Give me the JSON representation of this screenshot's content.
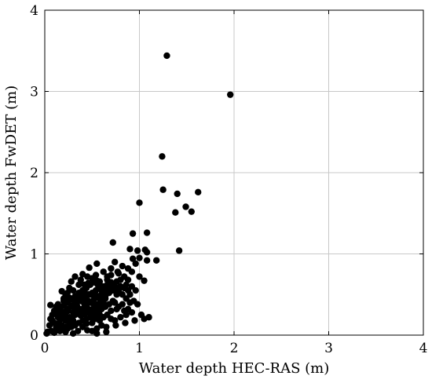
{
  "chart_data": {
    "type": "scatter",
    "title": "",
    "xlabel": "Water depth HEC-RAS (m)",
    "ylabel": "Water depth FwDET (m)",
    "xlim": [
      0,
      4
    ],
    "ylim": [
      0,
      4
    ],
    "xticks": [
      "0",
      "1",
      "2",
      "3",
      "4"
    ],
    "yticks": [
      "0",
      "1",
      "2",
      "3",
      "4"
    ],
    "grid": true,
    "marker_color": "#000000",
    "points": [
      [
        1.29,
        3.44
      ],
      [
        1.96,
        2.96
      ],
      [
        1.24,
        2.2
      ],
      [
        1.25,
        1.79
      ],
      [
        1.4,
        1.74
      ],
      [
        1.62,
        1.76
      ],
      [
        1.49,
        1.58
      ],
      [
        1.38,
        1.51
      ],
      [
        1.55,
        1.52
      ],
      [
        1.0,
        1.63
      ],
      [
        0.93,
        1.25
      ],
      [
        1.08,
        1.26
      ],
      [
        0.72,
        1.14
      ],
      [
        0.9,
        1.06
      ],
      [
        0.98,
        1.04
      ],
      [
        1.06,
        1.05
      ],
      [
        1.08,
        1.02
      ],
      [
        1.42,
        1.04
      ],
      [
        0.93,
        0.94
      ],
      [
        1.0,
        0.95
      ],
      [
        1.18,
        0.92
      ],
      [
        1.08,
        0.92
      ],
      [
        0.96,
        0.88
      ],
      [
        0.88,
        0.82
      ],
      [
        0.82,
        0.85
      ],
      [
        0.74,
        0.9
      ],
      [
        0.55,
        0.88
      ],
      [
        0.47,
        0.83
      ],
      [
        0.77,
        0.78
      ],
      [
        0.92,
        0.78
      ],
      [
        1.05,
        0.67
      ],
      [
        0.88,
        0.68
      ],
      [
        0.62,
        0.78
      ],
      [
        0.66,
        0.72
      ],
      [
        0.55,
        0.67
      ],
      [
        0.45,
        0.72
      ],
      [
        0.4,
        0.75
      ],
      [
        0.32,
        0.72
      ],
      [
        0.28,
        0.66
      ],
      [
        0.36,
        0.62
      ],
      [
        0.24,
        0.52
      ],
      [
        0.18,
        0.54
      ],
      [
        0.26,
        0.58
      ],
      [
        0.2,
        0.45
      ],
      [
        0.14,
        0.38
      ],
      [
        0.06,
        0.37
      ],
      [
        0.1,
        0.3
      ],
      [
        0.08,
        0.25
      ],
      [
        0.05,
        0.12
      ],
      [
        0.03,
        0.04
      ],
      [
        0.07,
        0.05
      ],
      [
        0.1,
        0.03
      ],
      [
        0.02,
        0.02
      ],
      [
        0.12,
        0.1
      ],
      [
        0.15,
        0.15
      ],
      [
        0.18,
        0.2
      ],
      [
        0.22,
        0.24
      ],
      [
        0.25,
        0.3
      ],
      [
        0.3,
        0.35
      ],
      [
        0.34,
        0.4
      ],
      [
        0.38,
        0.42
      ],
      [
        0.42,
        0.45
      ],
      [
        0.46,
        0.5
      ],
      [
        0.5,
        0.52
      ],
      [
        0.54,
        0.55
      ],
      [
        0.58,
        0.58
      ],
      [
        0.62,
        0.6
      ],
      [
        0.66,
        0.62
      ],
      [
        0.7,
        0.65
      ],
      [
        0.74,
        0.6
      ],
      [
        0.78,
        0.55
      ],
      [
        0.82,
        0.5
      ],
      [
        0.86,
        0.45
      ],
      [
        0.9,
        0.4
      ],
      [
        0.94,
        0.42
      ],
      [
        0.98,
        0.38
      ],
      [
        0.72,
        0.42
      ],
      [
        0.68,
        0.38
      ],
      [
        0.64,
        0.35
      ],
      [
        0.6,
        0.32
      ],
      [
        0.56,
        0.28
      ],
      [
        0.52,
        0.25
      ],
      [
        0.48,
        0.22
      ],
      [
        0.44,
        0.2
      ],
      [
        0.4,
        0.18
      ],
      [
        0.36,
        0.15
      ],
      [
        0.32,
        0.12
      ],
      [
        0.28,
        0.1
      ],
      [
        0.24,
        0.08
      ],
      [
        0.2,
        0.06
      ],
      [
        0.16,
        0.05
      ],
      [
        0.35,
        0.05
      ],
      [
        0.45,
        0.06
      ],
      [
        0.55,
        0.08
      ],
      [
        0.65,
        0.1
      ],
      [
        0.75,
        0.12
      ],
      [
        0.85,
        0.15
      ],
      [
        0.95,
        0.18
      ],
      [
        1.05,
        0.2
      ],
      [
        1.1,
        0.22
      ],
      [
        1.02,
        0.25
      ],
      [
        0.92,
        0.28
      ],
      [
        0.84,
        0.3
      ],
      [
        0.76,
        0.32
      ],
      [
        0.7,
        0.3
      ],
      [
        0.58,
        0.45
      ],
      [
        0.5,
        0.4
      ],
      [
        0.42,
        0.38
      ],
      [
        0.38,
        0.32
      ],
      [
        0.3,
        0.28
      ],
      [
        0.26,
        0.22
      ],
      [
        0.22,
        0.18
      ],
      [
        0.18,
        0.12
      ],
      [
        0.14,
        0.22
      ],
      [
        0.12,
        0.28
      ],
      [
        0.16,
        0.32
      ],
      [
        0.2,
        0.36
      ],
      [
        0.24,
        0.4
      ],
      [
        0.28,
        0.44
      ],
      [
        0.32,
        0.48
      ],
      [
        0.36,
        0.52
      ],
      [
        0.4,
        0.55
      ],
      [
        0.44,
        0.58
      ],
      [
        0.48,
        0.62
      ],
      [
        0.52,
        0.65
      ],
      [
        0.56,
        0.62
      ],
      [
        0.6,
        0.5
      ],
      [
        0.64,
        0.48
      ],
      [
        0.68,
        0.52
      ],
      [
        0.72,
        0.55
      ],
      [
        0.76,
        0.5
      ],
      [
        0.8,
        0.68
      ],
      [
        0.84,
        0.72
      ],
      [
        0.78,
        0.76
      ],
      [
        0.7,
        0.82
      ],
      [
        0.86,
        0.62
      ],
      [
        0.3,
        0.55
      ],
      [
        0.34,
        0.3
      ],
      [
        0.46,
        0.32
      ],
      [
        0.5,
        0.15
      ],
      [
        0.58,
        0.18
      ],
      [
        0.62,
        0.22
      ],
      [
        0.66,
        0.25
      ],
      [
        0.7,
        0.2
      ],
      [
        0.74,
        0.18
      ],
      [
        0.8,
        0.22
      ],
      [
        0.86,
        0.25
      ],
      [
        0.4,
        0.1
      ],
      [
        0.44,
        0.14
      ],
      [
        0.48,
        0.3
      ],
      [
        0.52,
        0.35
      ],
      [
        0.56,
        0.38
      ],
      [
        0.6,
        0.42
      ],
      [
        0.64,
        0.45
      ],
      [
        0.2,
        0.28
      ],
      [
        0.24,
        0.32
      ],
      [
        0.28,
        0.2
      ],
      [
        0.32,
        0.25
      ],
      [
        0.36,
        0.28
      ],
      [
        0.4,
        0.3
      ],
      [
        0.44,
        0.35
      ],
      [
        0.48,
        0.4
      ],
      [
        0.52,
        0.44
      ],
      [
        0.34,
        0.46
      ],
      [
        0.38,
        0.5
      ],
      [
        0.42,
        0.52
      ],
      [
        0.46,
        0.42
      ],
      [
        0.5,
        0.3
      ],
      [
        0.54,
        0.32
      ],
      [
        0.58,
        0.36
      ],
      [
        0.62,
        0.4
      ],
      [
        0.3,
        0.18
      ],
      [
        0.26,
        0.14
      ],
      [
        0.22,
        0.1
      ],
      [
        0.18,
        0.08
      ],
      [
        0.14,
        0.06
      ],
      [
        0.1,
        0.15
      ],
      [
        0.08,
        0.18
      ],
      [
        0.06,
        0.2
      ],
      [
        0.16,
        0.25
      ],
      [
        0.12,
        0.35
      ],
      [
        0.2,
        0.42
      ],
      [
        0.22,
        0.5
      ],
      [
        0.26,
        0.46
      ],
      [
        0.42,
        0.62
      ],
      [
        0.38,
        0.68
      ],
      [
        0.5,
        0.7
      ],
      [
        0.54,
        0.74
      ],
      [
        0.58,
        0.66
      ],
      [
        0.46,
        0.64
      ],
      [
        0.66,
        0.68
      ],
      [
        0.7,
        0.74
      ],
      [
        0.62,
        0.52
      ],
      [
        0.66,
        0.55
      ],
      [
        0.74,
        0.4
      ],
      [
        0.78,
        0.35
      ],
      [
        0.82,
        0.38
      ],
      [
        0.88,
        0.32
      ],
      [
        0.9,
        0.5
      ],
      [
        0.96,
        0.55
      ],
      [
        0.92,
        0.6
      ],
      [
        1.0,
        0.72
      ],
      [
        0.55,
        0.02
      ],
      [
        0.65,
        0.04
      ],
      [
        0.3,
        0.02
      ],
      [
        0.22,
        0.04
      ],
      [
        0.5,
        0.05
      ],
      [
        0.6,
        0.12
      ],
      [
        0.34,
        0.36
      ],
      [
        0.38,
        0.24
      ],
      [
        0.42,
        0.26
      ],
      [
        0.46,
        0.28
      ],
      [
        0.5,
        0.22
      ],
      [
        0.54,
        0.2
      ],
      [
        0.58,
        0.25
      ],
      [
        0.28,
        0.36
      ],
      [
        0.32,
        0.4
      ],
      [
        0.36,
        0.44
      ],
      [
        0.4,
        0.46
      ],
      [
        0.44,
        0.48
      ],
      [
        0.48,
        0.5
      ],
      [
        0.52,
        0.5
      ],
      [
        0.56,
        0.48
      ],
      [
        0.6,
        0.55
      ],
      [
        0.64,
        0.58
      ],
      [
        0.68,
        0.6
      ],
      [
        0.72,
        0.62
      ],
      [
        0.76,
        0.66
      ],
      [
        0.8,
        0.6
      ],
      [
        0.84,
        0.58
      ],
      [
        0.88,
        0.55
      ]
    ]
  }
}
